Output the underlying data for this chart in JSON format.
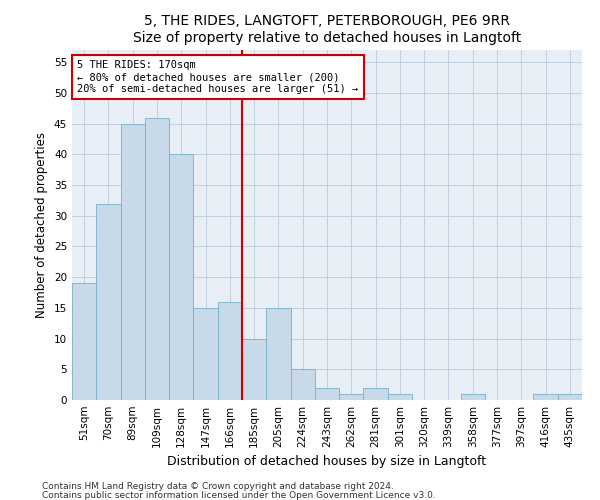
{
  "title": "5, THE RIDES, LANGTOFT, PETERBOROUGH, PE6 9RR",
  "subtitle": "Size of property relative to detached houses in Langtoft",
  "xlabel": "Distribution of detached houses by size in Langtoft",
  "ylabel": "Number of detached properties",
  "categories": [
    "51sqm",
    "70sqm",
    "89sqm",
    "109sqm",
    "128sqm",
    "147sqm",
    "166sqm",
    "185sqm",
    "205sqm",
    "224sqm",
    "243sqm",
    "262sqm",
    "281sqm",
    "301sqm",
    "320sqm",
    "339sqm",
    "358sqm",
    "377sqm",
    "397sqm",
    "416sqm",
    "435sqm"
  ],
  "values": [
    19,
    32,
    45,
    46,
    40,
    15,
    16,
    10,
    15,
    5,
    2,
    1,
    2,
    1,
    0,
    0,
    1,
    0,
    0,
    1,
    1
  ],
  "bar_color": "#c8d9ea",
  "bar_edge_color": "#7aafc8",
  "ylim": [
    0,
    57
  ],
  "yticks": [
    0,
    5,
    10,
    15,
    20,
    25,
    30,
    35,
    40,
    45,
    50,
    55
  ],
  "vline_x": 6.5,
  "annotation_text_line1": "5 THE RIDES: 170sqm",
  "annotation_text_line2": "← 80% of detached houses are smaller (200)",
  "annotation_text_line3": "20% of semi-detached houses are larger (51) →",
  "annotation_box_color": "#ffffff",
  "annotation_box_edge": "#cc0000",
  "vline_color": "#cc0000",
  "footnote1": "Contains HM Land Registry data © Crown copyright and database right 2024.",
  "footnote2": "Contains public sector information licensed under the Open Government Licence v3.0.",
  "background_color": "#e8eef5",
  "grid_color": "#c0cfe0",
  "title_fontsize": 10,
  "xlabel_fontsize": 9,
  "ylabel_fontsize": 8.5,
  "tick_fontsize": 7.5,
  "annot_fontsize": 7.5,
  "footnote_fontsize": 6.5
}
